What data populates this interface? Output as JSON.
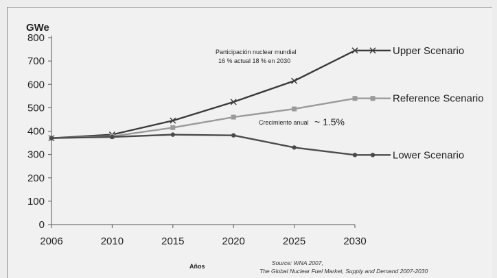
{
  "chart_data": {
    "type": "line",
    "unit_label": "GWe",
    "xlabel": "Años",
    "x": [
      "2006",
      "2010",
      "2015",
      "2020",
      "2025",
      "2030"
    ],
    "ylim": [
      0,
      800
    ],
    "yticks": [
      0,
      100,
      200,
      300,
      400,
      500,
      600,
      700,
      800
    ],
    "series": [
      {
        "name": "Upper Scenario",
        "values": [
          370,
          385,
          445,
          525,
          615,
          745
        ],
        "color": "#3a3a3a",
        "marker": "x"
      },
      {
        "name": "Reference Scenario",
        "values": [
          370,
          378,
          415,
          460,
          495,
          540
        ],
        "color": "#9a9a9a",
        "marker": "square"
      },
      {
        "name": "Lower Scenario",
        "values": [
          370,
          375,
          385,
          382,
          330,
          298
        ],
        "color": "#4a4a4a",
        "marker": "dot"
      }
    ],
    "annotations": {
      "participation_line1": "Participación nuclear mundial",
      "participation_line2": "16 % actual 18 % en 2030",
      "growth_text": "Crecimiento anual",
      "growth_value": "~ 1.5%"
    },
    "source_line1": "Source: WNA 2007,",
    "source_line2": "The Global Nuclear Fuel Market, Supply and Demand 2007-2030",
    "grid": false,
    "legend_position": "right, inline with line ends"
  }
}
